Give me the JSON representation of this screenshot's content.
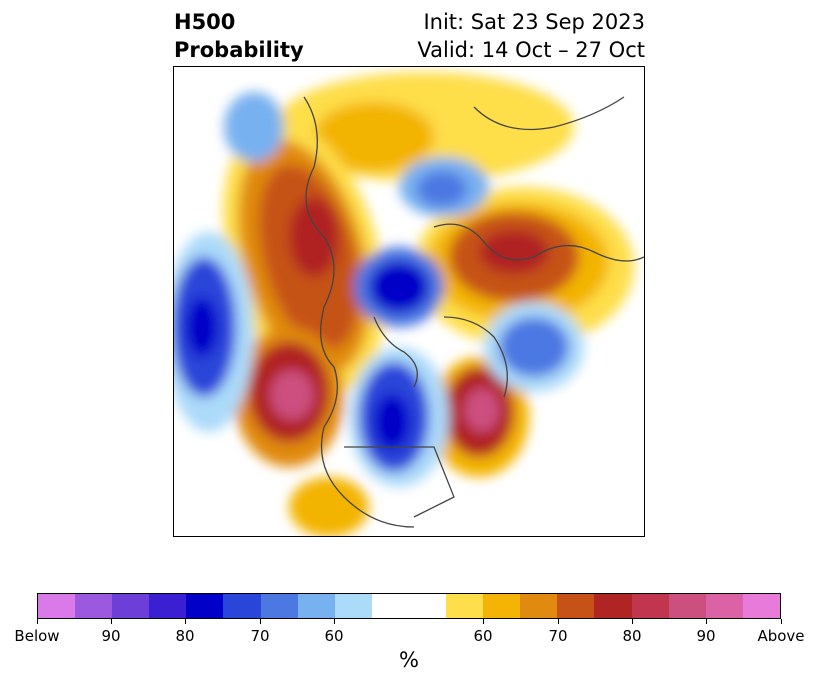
{
  "title": {
    "left_line1": "H500",
    "left_line2": "Probability",
    "right_line1": "Init: Sat 23 Sep 2023",
    "right_line2": "Valid: 14 Oct – 27 Oct"
  },
  "colorbar": {
    "unit": "%",
    "colors": [
      "#d97ae8",
      "#9c59e0",
      "#6e3ed8",
      "#3a20d2",
      "#0000c8",
      "#2a45d9",
      "#4c78e2",
      "#78b1f0",
      "#acdaf9",
      "#ffffff",
      "#ffffff",
      "#fede4a",
      "#f3b405",
      "#e08a10",
      "#c65218",
      "#b02424",
      "#c1364e",
      "#cc4f7f",
      "#dc62a6",
      "#e87ad9"
    ],
    "tick_labels": [
      "Below",
      "90",
      "80",
      "70",
      "60",
      "60",
      "70",
      "80",
      "90",
      "Above"
    ]
  },
  "map": {
    "projection": "north-polar-stereographic",
    "field": "500 hPa height probability anomalies"
  }
}
